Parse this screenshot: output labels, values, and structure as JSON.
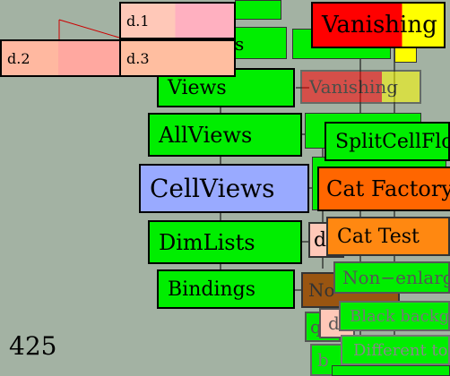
{
  "page_number": "425",
  "cells": {
    "d1": "d.1",
    "d2": "d.2",
    "d3": "d.3"
  },
  "nodes": {
    "views": "Views",
    "allviews": "AllViews",
    "cellviews": "CellViews",
    "dimlists": "DimLists",
    "bindings": "Bindings",
    "vanishing_top": "Vanishing",
    "vanishing_mid": "Vanishing",
    "splitcellflow": "SplitCellFlo",
    "cat_factory": "Cat Factory",
    "cat_test": "Cat Test",
    "non_enlarg": "Non−enlarg",
    "no_partial": "No",
    "black_backg": "Black backg",
    "different_to": "Different to",
    "partial_s": "s",
    "partial_d": "d",
    "partial_q1": "q",
    "partial_q2": "d",
    "partial_b": "b"
  },
  "colors": {
    "background": "#a3b2a3",
    "node_green": "#00ee00",
    "cell_views_blue": "#99aaff",
    "vanishing_red": "#ff0000",
    "vanishing_yellow": "#ffff00",
    "cat_orange": "#ff6600",
    "cat_test_orange": "#ff8811",
    "brown": "#995511",
    "cell_salmon": "#ffb0a0",
    "cell_pink": "#ffb0c0"
  }
}
